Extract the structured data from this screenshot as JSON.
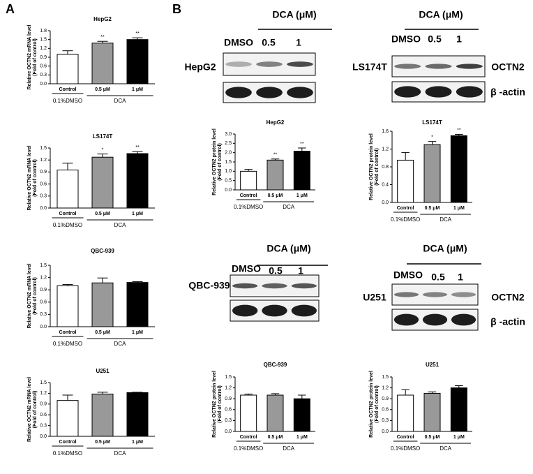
{
  "panel_labels": [
    "A",
    "B"
  ],
  "blots": [
    {
      "cell": "HepG2",
      "treatment": "DCA (μM)",
      "lanes": [
        "DMSO",
        "0.5",
        "1"
      ]
    },
    {
      "cell": "LS174T",
      "treatment": "DCA (μM)",
      "lanes": [
        "DMSO",
        "0.5",
        "1"
      ],
      "proteins": [
        "OCTN2",
        "β -actin"
      ]
    },
    {
      "cell": "QBC-939",
      "treatment": "DCA (μM)",
      "lanes": [
        "DMSO",
        "0.5",
        "1"
      ]
    },
    {
      "cell": "U251",
      "treatment": "DCA (μM)",
      "lanes": [
        "DMSO",
        "0.5",
        "1"
      ],
      "proteins": [
        "OCTN2",
        "β -actin"
      ]
    }
  ],
  "chart_data": [
    {
      "type": "bar",
      "title": "HepG2",
      "ylabel": [
        "Relative OCTN2 mRNA level",
        "(Fold of control)"
      ],
      "categories": [
        "Control",
        "0.5 μM",
        "1 μM"
      ],
      "groups": [
        "0.1%DMSO",
        "DCA"
      ],
      "values": [
        1.0,
        1.38,
        1.5
      ],
      "errors": [
        0.12,
        0.06,
        0.06
      ],
      "significance": [
        null,
        "**",
        "**"
      ],
      "colors": [
        "#ffffff",
        "#999999",
        "#000000"
      ],
      "ylim": [
        0,
        1.8
      ],
      "yticks": [
        {
          "value": 0,
          "label": "0.0"
        },
        0.3,
        0.6,
        0.9,
        1.2,
        1.5,
        1.8
      ]
    },
    {
      "type": "bar",
      "title": "LS174T",
      "ylabel": [
        "Relative OCTN2 mRNA level",
        "(Fold of control)"
      ],
      "categories": [
        "Control",
        "0.5 μM",
        "1 μM"
      ],
      "groups": [
        "0.1%DMSO",
        "DCA"
      ],
      "values": [
        0.95,
        1.27,
        1.36
      ],
      "errors": [
        0.17,
        0.08,
        0.05
      ],
      "significance": [
        null,
        "*",
        "**"
      ],
      "colors": [
        "#ffffff",
        "#999999",
        "#000000"
      ],
      "ylim": [
        0,
        1.5
      ],
      "yticks": [
        {
          "value": 0,
          "label": "0.0"
        },
        0.3,
        0.6,
        0.9,
        1.2,
        1.5
      ]
    },
    {
      "type": "bar",
      "title": "QBC-939",
      "ylabel": [
        "Relative OCTN2 mRNA level",
        "(Fold of control)"
      ],
      "categories": [
        "Control",
        "0.5 μM",
        "1 μM"
      ],
      "groups": [
        "0.1%DMSO",
        "DCA"
      ],
      "values": [
        1.0,
        1.07,
        1.08
      ],
      "errors": [
        0.03,
        0.12,
        0.02
      ],
      "significance": [
        null,
        null,
        null
      ],
      "colors": [
        "#ffffff",
        "#999999",
        "#000000"
      ],
      "ylim": [
        0,
        1.5
      ],
      "yticks": [
        {
          "value": 0,
          "label": "0.0"
        },
        0.3,
        0.6,
        0.9,
        1.2,
        1.5
      ]
    },
    {
      "type": "bar",
      "title": "U251",
      "ylabel": [
        "Relative OCTN2 mRNA level",
        "(Fold of control)"
      ],
      "categories": [
        "Control",
        "0.5 μM",
        "1 μM"
      ],
      "groups": [
        "0.1%DMSO",
        "DCA"
      ],
      "values": [
        1.0,
        1.18,
        1.22
      ],
      "errors": [
        0.15,
        0.05,
        0.01
      ],
      "significance": [
        null,
        null,
        null
      ],
      "colors": [
        "#ffffff",
        "#999999",
        "#000000"
      ],
      "ylim": [
        0,
        1.5
      ],
      "yticks": [
        {
          "value": 0,
          "label": "0.0"
        },
        0.3,
        0.6,
        0.9,
        1.2,
        1.5
      ]
    },
    {
      "type": "bar",
      "title": "HepG2",
      "ylabel": [
        "Relative OCTN2 protein level",
        "(Fold of control)"
      ],
      "categories": [
        "Control",
        "0.5 μM",
        "1 μM"
      ],
      "groups": [
        "0.1%DMSO",
        "DCA"
      ],
      "values": [
        1.0,
        1.6,
        2.08
      ],
      "errors": [
        0.1,
        0.06,
        0.17
      ],
      "significance": [
        null,
        "**",
        "**"
      ],
      "colors": [
        "#ffffff",
        "#999999",
        "#000000"
      ],
      "ylim": [
        0,
        3
      ],
      "yticks": [
        {
          "value": 0,
          "label": "0.0"
        },
        0.5,
        {
          "value": 1,
          "label": "1.0"
        },
        1.5,
        {
          "value": 2,
          "label": "2.0"
        },
        2.5,
        {
          "value": 3,
          "label": "3.0"
        }
      ]
    },
    {
      "type": "bar",
      "title": "LS174T",
      "ylabel": [
        "Relative OCTN2 protein level",
        "(Fold of control)"
      ],
      "categories": [
        "Control",
        "0.5 μM",
        "1 μM"
      ],
      "groups": [
        "0.1%DMSO",
        "DCA"
      ],
      "values": [
        0.95,
        1.3,
        1.5
      ],
      "errors": [
        0.17,
        0.07,
        0.03
      ],
      "significance": [
        null,
        "*",
        "**"
      ],
      "colors": [
        "#ffffff",
        "#999999",
        "#000000"
      ],
      "ylim": [
        0,
        1.6
      ],
      "yticks": [
        {
          "value": 0,
          "label": "0.0"
        },
        0.4,
        0.8,
        1.2,
        1.6
      ]
    },
    {
      "type": "bar",
      "title": "QBC-939",
      "ylabel": [
        "Relative OCTN2 protein level",
        "(Fold of control)"
      ],
      "categories": [
        "Control",
        "0.5 μM",
        "1 μM"
      ],
      "groups": [
        "0.1%DMSO",
        "DCA"
      ],
      "values": [
        1.0,
        1.0,
        0.9
      ],
      "errors": [
        0.03,
        0.04,
        0.1
      ],
      "significance": [
        null,
        null,
        null
      ],
      "colors": [
        "#ffffff",
        "#999999",
        "#000000"
      ],
      "ylim": [
        0,
        1.5
      ],
      "yticks": [
        {
          "value": 0,
          "label": "0.0"
        },
        0.3,
        0.6,
        0.9,
        1.2,
        1.5
      ]
    },
    {
      "type": "bar",
      "title": "U251",
      "ylabel": [
        "Relative OCTN2 protein level",
        "(Fold of control)"
      ],
      "categories": [
        "Control",
        "0.5 μM",
        "1 μM"
      ],
      "groups": [
        "0.1%DMSO",
        "DCA"
      ],
      "values": [
        1.0,
        1.05,
        1.2
      ],
      "errors": [
        0.15,
        0.04,
        0.06
      ],
      "significance": [
        null,
        null,
        null
      ],
      "colors": [
        "#ffffff",
        "#999999",
        "#000000"
      ],
      "ylim": [
        0,
        1.5
      ],
      "yticks": [
        {
          "value": 0,
          "label": "0.0"
        },
        0.3,
        0.6,
        0.9,
        1.2,
        1.5
      ]
    }
  ]
}
